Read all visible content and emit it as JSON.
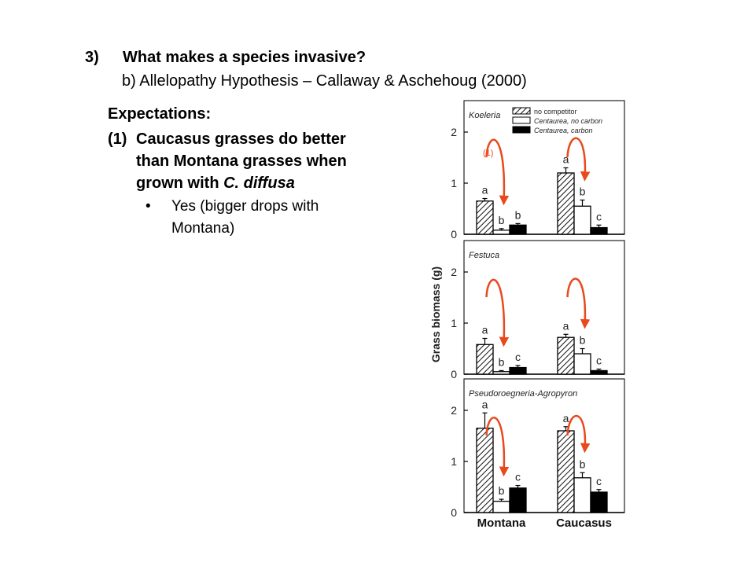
{
  "slide": {
    "heading_number": "3)",
    "heading": "What makes a species invasive?",
    "subheading": "b) Allelopathy Hypothesis – Callaway & Aschehoug (2000)",
    "expectations_title": "Expectations:",
    "expectation_number": "(1)",
    "expectation_text_1": "Caucasus grasses do better",
    "expectation_text_2": "than Montana grasses when",
    "expectation_text_3": "grown with ",
    "expectation_species": "C. diffusa",
    "bullet_symbol": "•",
    "bullet_text": "Yes (bigger drops with Montana)",
    "annotation_label": "(1)",
    "annotation_color": "#e8491d"
  },
  "chart_data": {
    "type": "bar",
    "ylabel": "Grass biomass (g)",
    "ylim": [
      0,
      2.5
    ],
    "yticks": [
      0,
      1,
      2
    ],
    "categories": [
      "Montana",
      "Caucasus"
    ],
    "legend": [
      "no competitor",
      "Centaurea, no carbon",
      "Centaurea, carbon"
    ],
    "legend_placement": "top-right",
    "panels": [
      {
        "title": "Koeleria",
        "series": [
          {
            "name": "no competitor",
            "values": [
              0.65,
              1.2
            ],
            "errors": [
              0.05,
              0.1
            ],
            "letters": [
              "a",
              "a"
            ]
          },
          {
            "name": "Centaurea, no carbon",
            "values": [
              0.08,
              0.55
            ],
            "errors": [
              0.03,
              0.12
            ],
            "letters": [
              "b",
              "b"
            ]
          },
          {
            "name": "Centaurea, carbon",
            "values": [
              0.18,
              0.13
            ],
            "errors": [
              0.03,
              0.05
            ],
            "letters": [
              "b",
              "c"
            ]
          }
        ]
      },
      {
        "title": "Festuca",
        "series": [
          {
            "name": "no competitor",
            "values": [
              0.58,
              0.72
            ],
            "errors": [
              0.12,
              0.06
            ],
            "letters": [
              "a",
              "a"
            ]
          },
          {
            "name": "Centaurea, no carbon",
            "values": [
              0.05,
              0.4
            ],
            "errors": [
              0.02,
              0.1
            ],
            "letters": [
              "b",
              "b"
            ]
          },
          {
            "name": "Centaurea, carbon",
            "values": [
              0.13,
              0.07
            ],
            "errors": [
              0.04,
              0.03
            ],
            "letters": [
              "c",
              "c"
            ]
          }
        ]
      },
      {
        "title": "Pseudoroegneria-Agropyron",
        "series": [
          {
            "name": "no competitor",
            "values": [
              1.65,
              1.6
            ],
            "errors": [
              0.3,
              0.08
            ],
            "letters": [
              "a",
              "a"
            ]
          },
          {
            "name": "Centaurea, no carbon",
            "values": [
              0.22,
              0.68
            ],
            "errors": [
              0.04,
              0.1
            ],
            "letters": [
              "b",
              "b"
            ]
          },
          {
            "name": "Centaurea, carbon",
            "values": [
              0.48,
              0.4
            ],
            "errors": [
              0.05,
              0.05
            ],
            "letters": [
              "c",
              "c"
            ]
          }
        ]
      }
    ]
  }
}
